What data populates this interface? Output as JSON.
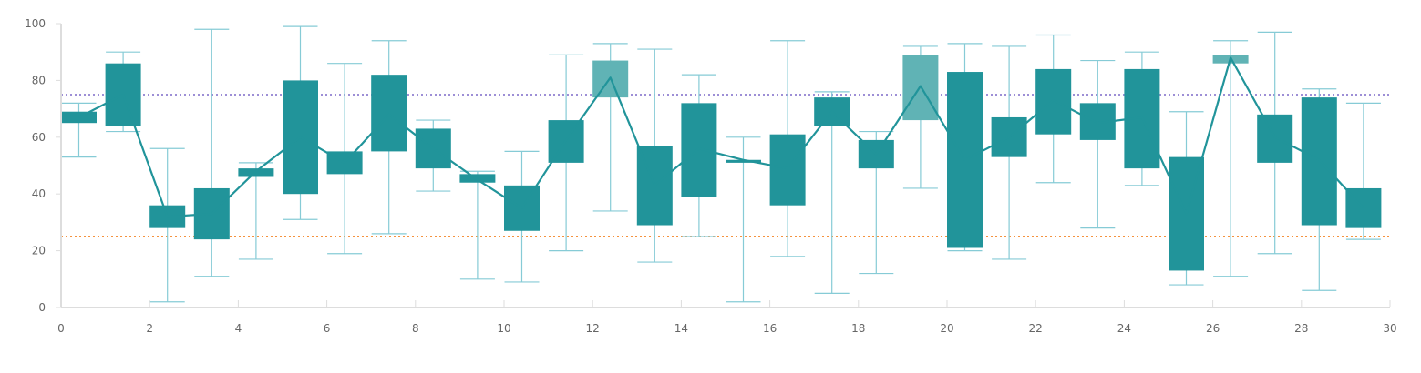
{
  "chart_data": {
    "type": "candlestick",
    "title": "",
    "xlabel": "",
    "ylabel": "",
    "xlim": [
      0,
      30
    ],
    "ylim": [
      0,
      100
    ],
    "x_ticks": [
      0,
      2,
      4,
      6,
      8,
      10,
      12,
      14,
      16,
      18,
      20,
      22,
      24,
      26,
      28,
      30
    ],
    "y_ticks": [
      0,
      20,
      40,
      60,
      80,
      100
    ],
    "x_tick_labels": [
      "0",
      "2",
      "4",
      "6",
      "8",
      "10",
      "12",
      "14",
      "16",
      "18",
      "20",
      "22",
      "24",
      "26",
      "28",
      "30"
    ],
    "y_tick_labels": [
      "0",
      "20",
      "40",
      "60",
      "80",
      "100"
    ],
    "grid": false,
    "reference_lines": [
      {
        "value": 75,
        "color": "#9d8fd6"
      },
      {
        "value": 25,
        "color": "#f5923e"
      }
    ],
    "colors": {
      "candle": "#21949a",
      "candle_highlight": "#60b3b5",
      "whisker": "#86cbd6",
      "trend_line": "#21949a",
      "axis": "#dddddd"
    },
    "candles": [
      {
        "x": 0,
        "low": 53,
        "high": 72,
        "open": 65,
        "close": 69
      },
      {
        "x": 1,
        "low": 62,
        "high": 90,
        "open": 64,
        "close": 86
      },
      {
        "x": 2,
        "low": 2,
        "high": 56,
        "open": 28,
        "close": 36
      },
      {
        "x": 3,
        "low": 11,
        "high": 98,
        "open": 24,
        "close": 42
      },
      {
        "x": 4,
        "low": 17,
        "high": 51,
        "open": 46,
        "close": 49
      },
      {
        "x": 5,
        "low": 31,
        "high": 99,
        "open": 40,
        "close": 80
      },
      {
        "x": 6,
        "low": 19,
        "high": 86,
        "open": 47,
        "close": 55
      },
      {
        "x": 7,
        "low": 26,
        "high": 94,
        "open": 55,
        "close": 82
      },
      {
        "x": 8,
        "low": 41,
        "high": 66,
        "open": 49,
        "close": 63
      },
      {
        "x": 9,
        "low": 10,
        "high": 48,
        "open": 44,
        "close": 47
      },
      {
        "x": 10,
        "low": 9,
        "high": 55,
        "open": 27,
        "close": 43
      },
      {
        "x": 11,
        "low": 20,
        "high": 89,
        "open": 51,
        "close": 66
      },
      {
        "x": 12,
        "low": 34,
        "high": 93,
        "open": 74,
        "close": 87,
        "highlight": true
      },
      {
        "x": 13,
        "low": 16,
        "high": 91,
        "open": 29,
        "close": 57
      },
      {
        "x": 14,
        "low": 25,
        "high": 82,
        "open": 39,
        "close": 72
      },
      {
        "x": 15,
        "low": 2,
        "high": 60,
        "open": 51,
        "close": 52
      },
      {
        "x": 16,
        "low": 18,
        "high": 94,
        "open": 36,
        "close": 61
      },
      {
        "x": 17,
        "low": 5,
        "high": 76,
        "open": 64,
        "close": 74
      },
      {
        "x": 18,
        "low": 12,
        "high": 62,
        "open": 49,
        "close": 59
      },
      {
        "x": 19,
        "low": 42,
        "high": 92,
        "open": 66,
        "close": 89,
        "highlight": true
      },
      {
        "x": 20,
        "low": 20,
        "high": 93,
        "open": 21,
        "close": 83
      },
      {
        "x": 21,
        "low": 17,
        "high": 92,
        "open": 53,
        "close": 67
      },
      {
        "x": 22,
        "low": 44,
        "high": 96,
        "open": 61,
        "close": 84
      },
      {
        "x": 23,
        "low": 28,
        "high": 87,
        "open": 59,
        "close": 72
      },
      {
        "x": 24,
        "low": 43,
        "high": 90,
        "open": 49,
        "close": 84
      },
      {
        "x": 25,
        "low": 8,
        "high": 69,
        "open": 13,
        "close": 53
      },
      {
        "x": 26,
        "low": 11,
        "high": 94,
        "open": 86,
        "close": 89,
        "highlight": true
      },
      {
        "x": 27,
        "low": 19,
        "high": 97,
        "open": 51,
        "close": 68
      },
      {
        "x": 28,
        "low": 6,
        "high": 77,
        "open": 29,
        "close": 74
      },
      {
        "x": 29,
        "low": 24,
        "high": 72,
        "open": 28,
        "close": 42
      }
    ],
    "trend_line": [
      {
        "x": 0,
        "y": 67
      },
      {
        "x": 1,
        "y": 75
      },
      {
        "x": 2,
        "y": 32
      },
      {
        "x": 3,
        "y": 33
      },
      {
        "x": 4,
        "y": 48
      },
      {
        "x": 5,
        "y": 60
      },
      {
        "x": 6,
        "y": 51
      },
      {
        "x": 7,
        "y": 68
      },
      {
        "x": 8,
        "y": 56
      },
      {
        "x": 9,
        "y": 45
      },
      {
        "x": 10,
        "y": 35
      },
      {
        "x": 11,
        "y": 59
      },
      {
        "x": 12,
        "y": 81
      },
      {
        "x": 13,
        "y": 43
      },
      {
        "x": 14,
        "y": 56
      },
      {
        "x": 15,
        "y": 52
      },
      {
        "x": 16,
        "y": 49
      },
      {
        "x": 17,
        "y": 69
      },
      {
        "x": 18,
        "y": 54
      },
      {
        "x": 19,
        "y": 78
      },
      {
        "x": 20,
        "y": 52
      },
      {
        "x": 21,
        "y": 60
      },
      {
        "x": 22,
        "y": 73
      },
      {
        "x": 23,
        "y": 65
      },
      {
        "x": 24,
        "y": 67
      },
      {
        "x": 25,
        "y": 33
      },
      {
        "x": 26,
        "y": 88
      },
      {
        "x": 27,
        "y": 60
      },
      {
        "x": 28,
        "y": 52
      },
      {
        "x": 29,
        "y": 35
      }
    ]
  }
}
